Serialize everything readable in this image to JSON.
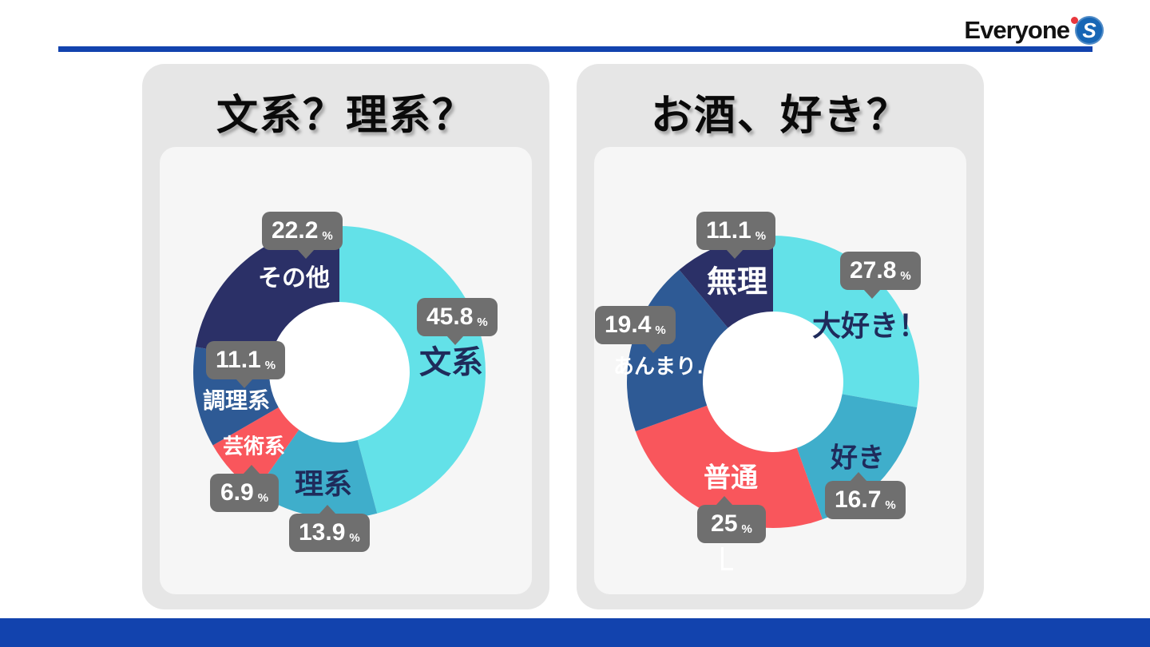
{
  "slide": {
    "accent_blue": "#1243AE",
    "card_bg": "#E6E6E6",
    "panel_bg": "#F6F6F6",
    "callout_bg": "#6F6F6F"
  },
  "header": {
    "logo_text": "Everyone",
    "logo_s": "S",
    "logo_dot_color": "#E8373D",
    "logo_globe_color": "#1766B5"
  },
  "chart_data": [
    {
      "type": "donut",
      "title": "文系？理系？",
      "unit": "%",
      "start": "top",
      "direction": "clockwise",
      "outer_radius": 183,
      "inner_radius": 88,
      "segments": [
        {
          "label": "文系",
          "value": 45.8,
          "color": "#63E1E8",
          "label_color": "#1F2B5B"
        },
        {
          "label": "理系",
          "value": 13.9,
          "color": "#3FAECB",
          "label_color": "#1F2B5B"
        },
        {
          "label": "芸術系",
          "value": 6.9,
          "color": "#F9565C",
          "label_color": "#FFFFFF"
        },
        {
          "label": "調理系",
          "value": 11.1,
          "color": "#2E5A95",
          "label_color": "#FFFFFF"
        },
        {
          "label": "その他",
          "value": 22.2,
          "color": "#2B3067",
          "label_color": "#FFFFFF"
        }
      ]
    },
    {
      "type": "donut",
      "title": "お酒、好き？",
      "unit": "%",
      "start": "top",
      "direction": "clockwise",
      "outer_radius": 183,
      "inner_radius": 88,
      "segments": [
        {
          "label": "大好き！",
          "value": 27.8,
          "color": "#63E1E8",
          "label_color": "#1F2B5B"
        },
        {
          "label": "好き",
          "value": 16.7,
          "color": "#3FAECB",
          "label_color": "#1F2B5B"
        },
        {
          "label": "普通",
          "value": 25,
          "color": "#F9565C",
          "label_color": "#FFFFFF"
        },
        {
          "label": "あんまり…",
          "value": 19.4,
          "color": "#2E5A95",
          "label_color": "#FFFFFF"
        },
        {
          "label": "無理",
          "value": 11.1,
          "color": "#2B3067",
          "label_color": "#FFFFFF"
        }
      ]
    }
  ]
}
